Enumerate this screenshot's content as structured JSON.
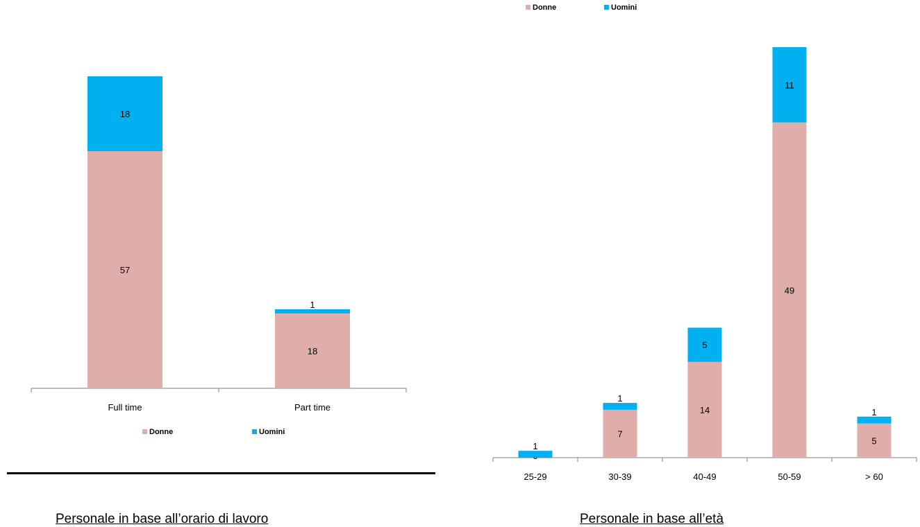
{
  "colors": {
    "donne": "#dfaeab",
    "uomini": "#00b0f0",
    "axis": "#7f7f7f"
  },
  "legend": {
    "donne": "Donne",
    "uomini": "Uomini"
  },
  "captions": {
    "left": "Personale in base all’orario di lavoro",
    "right": "Personale in base all’età"
  },
  "chart_data": [
    {
      "type": "bar",
      "stacked": true,
      "categories": [
        "Full time",
        "Part time"
      ],
      "series": [
        {
          "name": "Donne",
          "values": [
            57,
            18
          ]
        },
        {
          "name": "Uomini",
          "values": [
            18,
            1
          ]
        }
      ],
      "ylim": [
        0,
        80
      ],
      "grid": false,
      "legend": "bottom"
    },
    {
      "type": "bar",
      "stacked": true,
      "categories": [
        "25-29",
        "30-39",
        "40-49",
        "50-59",
        "> 60"
      ],
      "series": [
        {
          "name": "Donne",
          "values": [
            0,
            7,
            14,
            49,
            5
          ]
        },
        {
          "name": "Uomini",
          "values": [
            1,
            1,
            5,
            11,
            1
          ]
        }
      ],
      "ylim": [
        0,
        60
      ],
      "grid": false,
      "legend": "top-left"
    }
  ]
}
